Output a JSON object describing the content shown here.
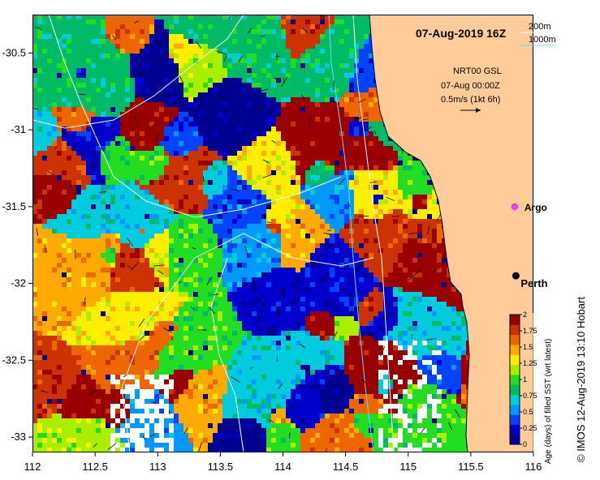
{
  "map": {
    "title": "07-Aug-2019 16Z",
    "region": {
      "lon_min": 112,
      "lon_max": 116,
      "lat_min": -33.1,
      "lat_max": -30.25
    },
    "x_ticks": [
      "112",
      "112.5",
      "113",
      "113.5",
      "114",
      "114.5",
      "115",
      "115.5",
      "116"
    ],
    "y_ticks": [
      "-30.5",
      "-31",
      "-31.5",
      "-32",
      "-32.5",
      "-33"
    ],
    "contour_legend": {
      "line1": "200m",
      "line2": "1000m"
    },
    "current_info": {
      "line1": "NRT00 GSL",
      "line2": "07-Aug 00:00Z",
      "line3": "0.5m/s (1kt 6h)"
    },
    "markers": {
      "argo": {
        "label": "Argo",
        "lon": 115.85,
        "lat": -31.5,
        "color": "#ff40ff"
      },
      "perth": {
        "label": "Perth",
        "lon": 115.86,
        "lat": -31.95,
        "color": "#000000"
      }
    },
    "land_color": "#ffcc99",
    "colorbar": {
      "title": "Age (days) of filled SST (wrt latest)",
      "ticks": [
        "0",
        "0.25",
        "0.5",
        "0.75",
        "1",
        "1.25",
        "1.5",
        "1.75",
        "2"
      ],
      "colors": [
        "#000090",
        "#0000cc",
        "#0044ff",
        "#0099ff",
        "#00ccdd",
        "#00bb66",
        "#22dd22",
        "#aaee00",
        "#ffee00",
        "#ffaa00",
        "#ee6600",
        "#cc3300",
        "#990000"
      ]
    },
    "credit": "© IMOS 12-Aug-2019 13:10 Hobart"
  }
}
